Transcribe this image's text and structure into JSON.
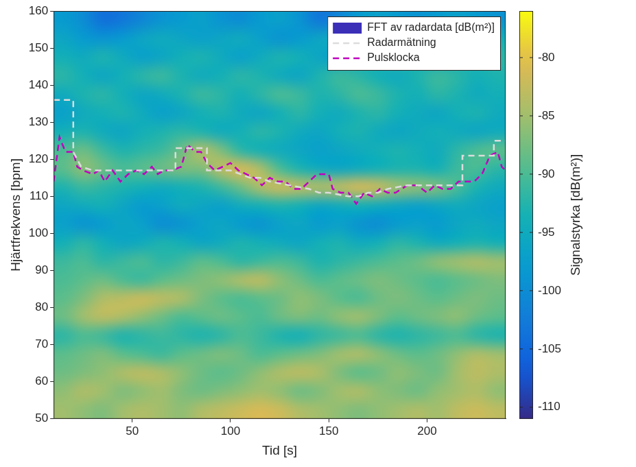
{
  "chart_data": {
    "type": "heatmap",
    "x_label": "Tid [s]",
    "y_label": "Hjärtfrekvens [bpm]",
    "xlim": [
      10,
      240
    ],
    "xticks": [
      50,
      100,
      150,
      200
    ],
    "ylim": [
      50,
      160
    ],
    "yticks": [
      50,
      60,
      70,
      80,
      90,
      100,
      110,
      120,
      130,
      140,
      150,
      160
    ],
    "grid": false,
    "legend": "upper right",
    "heatmap": {
      "name": "FFT av radardata [dB(m²)]",
      "color": "#3b2fb8",
      "x": [
        15,
        25,
        35,
        45,
        55,
        65,
        75,
        85,
        95,
        105,
        115,
        125,
        135,
        145,
        155,
        165,
        175,
        185,
        195,
        205,
        215,
        225,
        235
      ],
      "y": [
        52.5,
        57.5,
        62.5,
        67.5,
        72.5,
        77.5,
        82.5,
        87.5,
        92.5,
        97.5,
        102.5,
        107.5,
        112.5,
        117.5,
        122.5,
        127.5,
        132.5,
        137.5,
        142.5,
        147.5,
        152.5,
        157.5
      ],
      "z": [
        [
          -85,
          -86,
          -87,
          -85,
          -84,
          -85,
          -86,
          -84,
          -83,
          -82,
          -81,
          -82,
          -84,
          -85,
          -86,
          -87,
          -86,
          -85,
          -84,
          -85,
          -83,
          -82,
          -83
        ],
        [
          -86,
          -84,
          -85,
          -87,
          -86,
          -85,
          -87,
          -88,
          -87,
          -86,
          -85,
          -86,
          -88,
          -87,
          -85,
          -84,
          -86,
          -87,
          -88,
          -86,
          -85,
          -84,
          -86
        ],
        [
          -88,
          -87,
          -86,
          -84,
          -83,
          -84,
          -86,
          -88,
          -89,
          -88,
          -86,
          -84,
          -83,
          -84,
          -87,
          -89,
          -88,
          -86,
          -87,
          -88,
          -85,
          -83,
          -84
        ],
        [
          -89,
          -88,
          -87,
          -89,
          -90,
          -91,
          -89,
          -88,
          -87,
          -88,
          -90,
          -89,
          -88,
          -87,
          -85,
          -84,
          -86,
          -88,
          -89,
          -88,
          -86,
          -84,
          -85
        ],
        [
          -92,
          -90,
          -91,
          -93,
          -92,
          -91,
          -92,
          -93,
          -92,
          -90,
          -91,
          -93,
          -94,
          -92,
          -91,
          -90,
          -92,
          -93,
          -92,
          -91,
          -90,
          -92,
          -93
        ],
        [
          -88,
          -85,
          -83,
          -84,
          -86,
          -88,
          -90,
          -89,
          -88,
          -89,
          -90,
          -88,
          -87,
          -88,
          -86,
          -85,
          -87,
          -89,
          -88,
          -87,
          -86,
          -88,
          -89
        ],
        [
          -89,
          -87,
          -84,
          -83,
          -82,
          -83,
          -84,
          -87,
          -89,
          -90,
          -89,
          -88,
          -86,
          -87,
          -89,
          -90,
          -88,
          -87,
          -88,
          -89,
          -88,
          -87,
          -88
        ],
        [
          -90,
          -89,
          -88,
          -90,
          -91,
          -89,
          -88,
          -87,
          -86,
          -84,
          -83,
          -86,
          -88,
          -90,
          -89,
          -88,
          -87,
          -88,
          -89,
          -90,
          -89,
          -88,
          -87
        ],
        [
          -91,
          -90,
          -92,
          -91,
          -90,
          -92,
          -91,
          -89,
          -90,
          -92,
          -91,
          -90,
          -91,
          -93,
          -92,
          -91,
          -90,
          -89,
          -88,
          -86,
          -85,
          -84,
          -85
        ],
        [
          -94,
          -92,
          -94,
          -96,
          -95,
          -93,
          -94,
          -96,
          -95,
          -93,
          -94,
          -95,
          -96,
          -94,
          -93,
          -95,
          -94,
          -92,
          -93,
          -95,
          -94,
          -93,
          -94
        ],
        [
          -97,
          -99,
          -98,
          -96,
          -97,
          -100,
          -99,
          -97,
          -96,
          -98,
          -99,
          -97,
          -96,
          -98,
          -97,
          -99,
          -100,
          -98,
          -97,
          -98,
          -96,
          -95,
          -96
        ],
        [
          -96,
          -95,
          -94,
          -96,
          -98,
          -97,
          -95,
          -96,
          -97,
          -95,
          -94,
          -93,
          -94,
          -96,
          -95,
          -94,
          -95,
          -96,
          -97,
          -96,
          -95,
          -96,
          -97
        ],
        [
          -93,
          -91,
          -92,
          -93,
          -94,
          -95,
          -94,
          -93,
          -91,
          -88,
          -84,
          -82,
          -83,
          -84,
          -83,
          -81,
          -82,
          -85,
          -86,
          -87,
          -90,
          -93,
          -95
        ],
        [
          -89,
          -86,
          -88,
          -90,
          -89,
          -88,
          -87,
          -87,
          -83,
          -81,
          -84,
          -90,
          -93,
          -95,
          -96,
          -95,
          -94,
          -93,
          -93,
          -94,
          -91,
          -90,
          -92
        ],
        [
          -90,
          -88,
          -91,
          -93,
          -92,
          -91,
          -88,
          -84,
          -87,
          -92,
          -94,
          -95,
          -96,
          -97,
          -96,
          -95,
          -94,
          -93,
          -94,
          -95,
          -92,
          -90,
          -89
        ],
        [
          -94,
          -93,
          -95,
          -96,
          -94,
          -93,
          -92,
          -93,
          -95,
          -94,
          -92,
          -93,
          -95,
          -96,
          -94,
          -93,
          -95,
          -96,
          -95,
          -94,
          -95,
          -96,
          -95
        ],
        [
          -97,
          -95,
          -94,
          -93,
          -95,
          -97,
          -96,
          -94,
          -93,
          -95,
          -96,
          -94,
          -92,
          -94,
          -95,
          -93,
          -92,
          -94,
          -95,
          -96,
          -94,
          -93,
          -95
        ],
        [
          -95,
          -93,
          -92,
          -94,
          -96,
          -95,
          -93,
          -91,
          -92,
          -94,
          -92,
          -90,
          -91,
          -93,
          -92,
          -90,
          -91,
          -93,
          -94,
          -92,
          -93,
          -95,
          -94
        ],
        [
          -92,
          -94,
          -96,
          -94,
          -92,
          -91,
          -93,
          -95,
          -94,
          -92,
          -93,
          -95,
          -96,
          -93,
          -91,
          -92,
          -94,
          -95,
          -93,
          -91,
          -92,
          -94,
          -93
        ],
        [
          -94,
          -95,
          -93,
          -95,
          -97,
          -96,
          -94,
          -93,
          -95,
          -97,
          -95,
          -93,
          -94,
          -96,
          -97,
          -95,
          -93,
          -92,
          -94,
          -96,
          -95,
          -93,
          -92
        ],
        [
          -96,
          -98,
          -99,
          -98,
          -96,
          -95,
          -96,
          -97,
          -96,
          -95,
          -97,
          -99,
          -98,
          -96,
          -95,
          -97,
          -98,
          -96,
          -94,
          -96,
          -97,
          -95,
          -94
        ],
        [
          -98,
          -100,
          -104,
          -103,
          -101,
          -99,
          -98,
          -97,
          -99,
          -100,
          -98,
          -97,
          -99,
          -103,
          -101,
          -98,
          -97,
          -98,
          -99,
          -98,
          -97,
          -98,
          -99
        ]
      ]
    },
    "colorbar": {
      "label": "Signalstyrka [dB(m²)]",
      "range": [
        -111,
        -76
      ],
      "ticks": [
        -110,
        -105,
        -100,
        -95,
        -90,
        -85,
        -80
      ]
    },
    "series": [
      {
        "name": "Radarmätning",
        "type": "line",
        "color": "#dcdcdc",
        "line_style": "dashed",
        "x": [
          10,
          20,
          20,
          22,
          24,
          30,
          72,
          72,
          88,
          88,
          100,
          105,
          110,
          115,
          120,
          130,
          140,
          145,
          150,
          160,
          165,
          170,
          175,
          180,
          190,
          200,
          210,
          218,
          218,
          230,
          234,
          234,
          240
        ],
        "values": [
          136,
          136,
          122,
          120,
          118,
          117,
          117,
          123,
          123,
          117,
          117,
          116,
          115,
          115,
          114,
          113,
          112,
          111,
          111,
          110,
          110,
          111,
          111,
          112,
          113,
          113,
          113,
          113,
          121,
          121,
          121,
          125,
          125
        ]
      },
      {
        "name": "Pulsklocka",
        "type": "line",
        "color": "#c000c0",
        "line_style": "dashed",
        "x": [
          10,
          13,
          16,
          20,
          22,
          25,
          30,
          33,
          36,
          40,
          44,
          48,
          52,
          56,
          60,
          63,
          66,
          70,
          75,
          78,
          82,
          85,
          88,
          92,
          96,
          100,
          104,
          108,
          112,
          116,
          120,
          124,
          128,
          132,
          136,
          140,
          144,
          150,
          152,
          156,
          160,
          164,
          168,
          172,
          176,
          180,
          184,
          190,
          195,
          200,
          204,
          208,
          212,
          216,
          220,
          224,
          228,
          232,
          236,
          238,
          240
        ],
        "values": [
          114,
          126,
          122,
          122,
          118,
          117,
          116,
          117,
          114,
          117,
          114,
          116,
          117,
          116,
          118,
          116,
          117,
          117,
          118,
          124,
          122,
          122,
          119,
          117,
          118,
          119,
          117,
          116,
          115,
          113,
          115,
          114,
          114,
          112,
          112,
          114,
          116,
          116,
          112,
          111,
          111,
          108,
          111,
          110,
          112,
          111,
          111,
          113,
          113,
          111,
          113,
          112,
          112,
          114,
          114,
          114,
          116,
          121,
          122,
          118,
          117
        ]
      }
    ]
  }
}
